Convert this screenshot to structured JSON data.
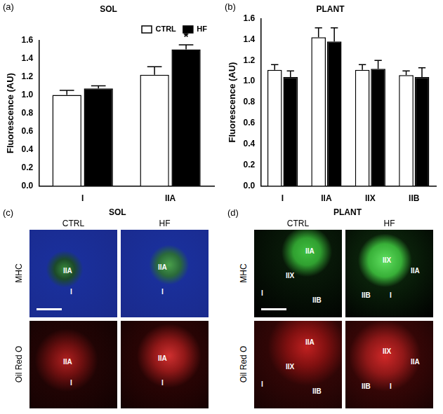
{
  "chart_data": [
    {
      "type": "bar",
      "label": "(a)",
      "title": "SOL",
      "y_label": "Fluorescence (AU)",
      "categories": [
        "I",
        "IIA"
      ],
      "series": [
        {
          "name": "CTRL",
          "color": "#ffffff",
          "values": [
            1.0,
            1.22
          ],
          "errors": [
            0.05,
            0.09
          ]
        },
        {
          "name": "HF",
          "color": "#000000",
          "values": [
            1.07,
            1.5
          ],
          "errors": [
            0.03,
            0.05
          ]
        }
      ],
      "ylim": [
        0,
        1.6
      ],
      "yticks": [
        {
          "value": 0,
          "label": "0.0"
        },
        0.2,
        0.4,
        0.6,
        0.8,
        {
          "value": 1,
          "label": "1.0"
        },
        1.2,
        1.4,
        1.6
      ],
      "grid": false,
      "legend": "upper right",
      "annotations": [
        {
          "text": "*",
          "series": "HF",
          "category": "IIA"
        }
      ]
    },
    {
      "type": "bar",
      "label": "(b)",
      "title": "PLANT",
      "y_label": "Fluorescence (AU)",
      "categories": [
        "I",
        "IIA",
        "IIX",
        "IIB"
      ],
      "series": [
        {
          "name": "CTRL",
          "color": "#ffffff",
          "values": [
            1.11,
            1.42,
            1.11,
            1.06
          ],
          "errors": [
            0.05,
            0.09,
            0.05,
            0.04
          ]
        },
        {
          "name": "HF",
          "color": "#000000",
          "values": [
            1.04,
            1.38,
            1.12,
            1.04
          ],
          "errors": [
            0.06,
            0.13,
            0.08,
            0.09
          ]
        }
      ],
      "ylim": [
        0,
        1.6
      ],
      "yticks": [
        {
          "value": 0,
          "label": "0.0"
        },
        0.2,
        0.4,
        0.6,
        0.8,
        {
          "value": 1,
          "label": "1.0"
        },
        1.2,
        1.4,
        1.6
      ],
      "grid": false
    }
  ],
  "image_panels": [
    {
      "label": "(c)",
      "title": "SOL",
      "columns": [
        "CTRL",
        "HF"
      ],
      "rows": [
        "MHC",
        "Oil Red O"
      ],
      "cells": [
        [
          [
            "IIA",
            "I"
          ],
          [
            "IIA",
            "I"
          ]
        ],
        [
          [
            "IIA",
            "I"
          ],
          [
            "IIA",
            "I"
          ]
        ]
      ]
    },
    {
      "label": "(d)",
      "title": "PLANT",
      "columns": [
        "CTRL",
        "HF"
      ],
      "rows": [
        "MHC",
        "Oil Red O"
      ],
      "cells": [
        [
          [
            "IIA",
            "IIX",
            "I",
            "IIB"
          ],
          [
            "IIX",
            "IIA",
            "IIB",
            "I"
          ]
        ],
        [
          [
            "IIA",
            "IIX",
            "I",
            "IIB"
          ],
          [
            "IIX",
            "IIA",
            "IIB",
            "I"
          ]
        ]
      ]
    }
  ]
}
